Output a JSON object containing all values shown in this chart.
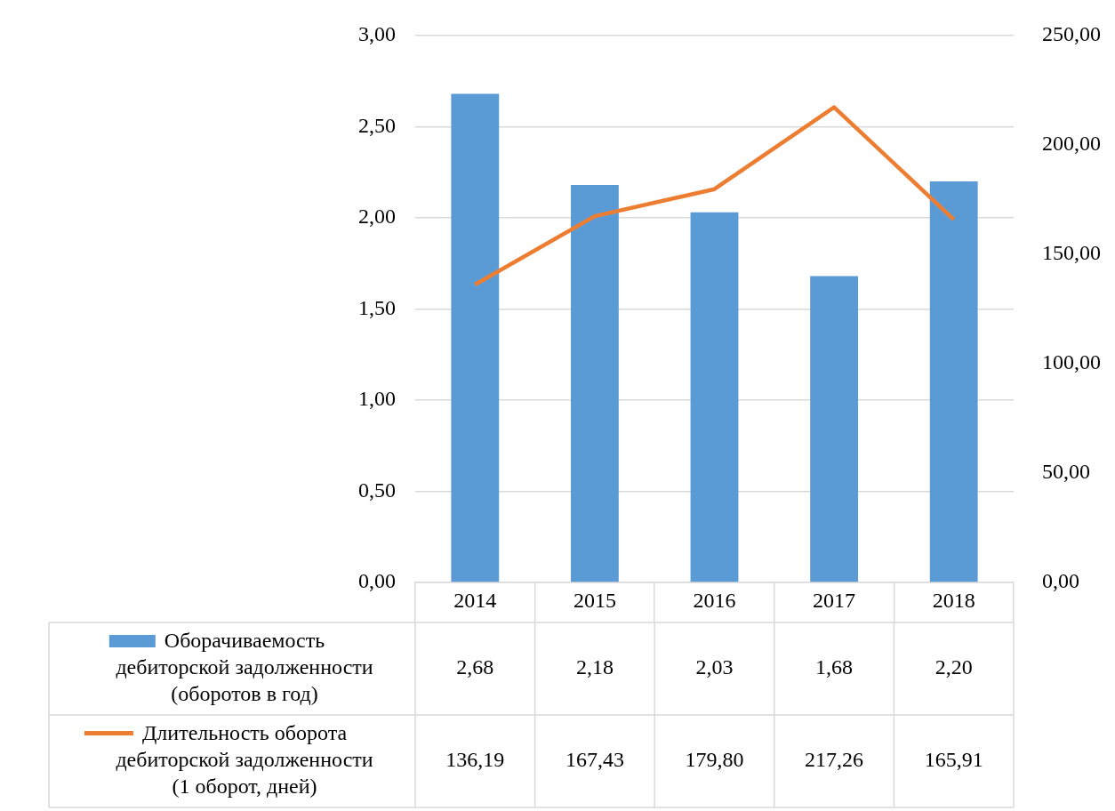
{
  "chart_data": {
    "type": "bar",
    "categories": [
      "2014",
      "2015",
      "2016",
      "2017",
      "2018"
    ],
    "series": [
      {
        "name": "Оборачиваемость дебиторской задолженности (оборотов в год)",
        "color": "#5b9bd5",
        "values": [
          2.68,
          2.18,
          2.03,
          1.68,
          2.2
        ],
        "value_labels": [
          "2,68",
          "2,18",
          "2,03",
          "1,68",
          "2,20"
        ]
      },
      {
        "name": "Длительность оборота дебиторской задолженности (1 оборот, дней)",
        "type": "line",
        "axis": "y2",
        "color": "#ed7d31",
        "values": [
          136.19,
          167.43,
          179.8,
          217.26,
          165.91
        ],
        "value_labels": [
          "136,19",
          "167,43",
          "179,80",
          "217,26",
          "165,91"
        ]
      }
    ],
    "ylim": [
      0,
      3
    ],
    "yticks": [
      {
        "value": 0,
        "label": "0,00"
      },
      {
        "value": 0.5,
        "label": "0,50"
      },
      {
        "value": 1,
        "label": "1,00"
      },
      {
        "value": 1.5,
        "label": "1,50"
      },
      {
        "value": 2,
        "label": "2,00"
      },
      {
        "value": 2.5,
        "label": "2,50"
      },
      {
        "value": 3,
        "label": "3,00"
      }
    ],
    "y2lim": [
      0,
      250
    ],
    "y2ticks": [
      {
        "value": 0,
        "label": "0,00"
      },
      {
        "value": 50,
        "label": "50,00"
      },
      {
        "value": 100,
        "label": "100,00"
      },
      {
        "value": 150,
        "label": "150,00"
      },
      {
        "value": 200,
        "label": "200,00"
      },
      {
        "value": 250,
        "label": "250,00"
      }
    ],
    "grid": "y",
    "legend": "bottom"
  }
}
